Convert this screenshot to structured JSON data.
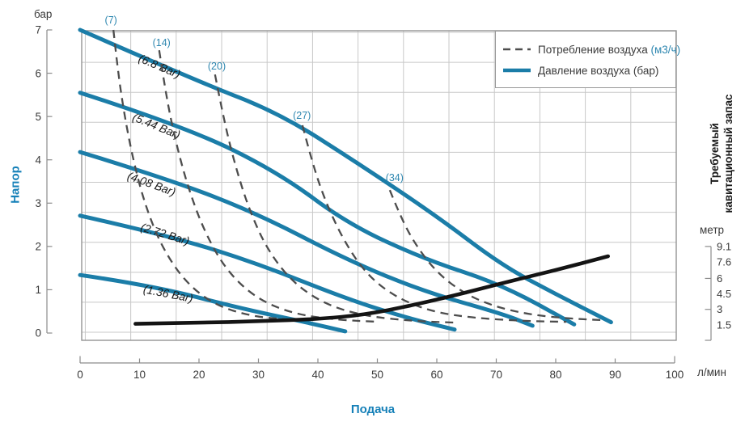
{
  "chart_data": {
    "type": "line",
    "title": "",
    "x_axis": {
      "label": "Подача",
      "unit": "л/мин",
      "range": [
        0,
        100
      ],
      "ticks": [
        0,
        10,
        20,
        30,
        40,
        50,
        60,
        70,
        80,
        90,
        100
      ]
    },
    "y_axis_left": {
      "label": "Напор",
      "unit": "бар",
      "range": [
        0,
        7
      ],
      "ticks": [
        0,
        1,
        2,
        3,
        4,
        5,
        6,
        7
      ]
    },
    "y_axis_right": {
      "label_line1": "Требуемый",
      "label_line2": "кавитационный запас",
      "unit": "метр",
      "range": [
        0,
        9.1
      ],
      "ticks": [
        9.1,
        7.6,
        6,
        4.5,
        3,
        1.5
      ],
      "tick_marks": [
        9.1,
        6,
        3,
        0
      ]
    },
    "legend": {
      "items": [
        {
          "name": "air-consumption",
          "label": "Потребление воздуха",
          "unit_suffix": "(м3/ч)",
          "style": "dashed"
        },
        {
          "name": "air-pressure",
          "label": "Давление воздуха (бар)",
          "unit_suffix": "",
          "style": "solid"
        }
      ]
    },
    "grid": {
      "x_step_lmin": 7.646,
      "y_step_bar": 0.6926
    },
    "series": [
      {
        "name": "air-pressure-6.8-bar",
        "group": "air-pressure",
        "style": "solid",
        "axis": "left",
        "label": "(6.8 Bar)",
        "label_at": [
          13.1,
          6.08
        ],
        "label_rotation": 23,
        "points": [
          [
            0,
            7.0
          ],
          [
            20,
            5.8
          ],
          [
            33.5,
            5.08
          ],
          [
            47,
            3.9
          ],
          [
            60,
            2.7
          ],
          [
            70.9,
            1.57
          ],
          [
            80,
            0.9
          ],
          [
            89.3,
            0.25
          ]
        ]
      },
      {
        "name": "air-pressure-5.44-bar",
        "group": "air-pressure",
        "style": "solid",
        "axis": "left",
        "label": "(5.44 Bar)",
        "label_at": [
          12.6,
          4.7
        ],
        "label_rotation": 22,
        "points": [
          [
            0,
            5.55
          ],
          [
            18,
            4.75
          ],
          [
            33.5,
            3.7
          ],
          [
            45,
            2.52
          ],
          [
            58,
            1.7
          ],
          [
            70.9,
            1.12
          ],
          [
            83.1,
            0.2
          ]
        ]
      },
      {
        "name": "air-pressure-4.08-bar",
        "group": "air-pressure",
        "style": "solid",
        "axis": "left",
        "label": "(4.08 Bar)",
        "label_at": [
          11.8,
          3.36
        ],
        "label_rotation": 20,
        "points": [
          [
            0,
            4.18
          ],
          [
            15,
            3.55
          ],
          [
            30,
            2.75
          ],
          [
            45,
            1.68
          ],
          [
            58,
            0.95
          ],
          [
            70.9,
            0.45
          ],
          [
            76.1,
            0.17
          ]
        ]
      },
      {
        "name": "air-pressure-2.72-bar",
        "group": "air-pressure",
        "style": "solid",
        "axis": "left",
        "label": "(2.72 Bar)",
        "label_at": [
          14.1,
          2.2
        ],
        "label_rotation": 17,
        "points": [
          [
            0,
            2.71
          ],
          [
            15,
            2.25
          ],
          [
            30,
            1.6
          ],
          [
            45,
            0.78
          ],
          [
            55,
            0.35
          ],
          [
            63,
            0.08
          ]
        ]
      },
      {
        "name": "air-pressure-1.36-bar",
        "group": "air-pressure",
        "style": "solid",
        "axis": "left",
        "label": "(1.36 Bar)",
        "label_at": [
          14.7,
          0.82
        ],
        "label_rotation": 11,
        "points": [
          [
            0,
            1.34
          ],
          [
            12,
            1.1
          ],
          [
            27.3,
            0.56
          ],
          [
            38,
            0.25
          ],
          [
            44.6,
            0.04
          ]
        ]
      },
      {
        "name": "air-consumption-7",
        "group": "air-consumption",
        "style": "dashed",
        "axis": "left",
        "label": "(7)",
        "label_at": [
          5.2,
          7.15
        ],
        "label_rotation": 0,
        "points": [
          [
            5.6,
            7.0
          ],
          [
            6.4,
            6.0
          ],
          [
            7.5,
            5.0
          ],
          [
            9.0,
            3.96
          ],
          [
            11.0,
            2.93
          ],
          [
            13.7,
            2.0
          ],
          [
            17.6,
            1.19
          ],
          [
            22.6,
            0.65
          ],
          [
            28.7,
            0.39
          ],
          [
            34.4,
            0.32
          ]
        ]
      },
      {
        "name": "air-consumption-14",
        "group": "air-consumption",
        "style": "dashed",
        "axis": "left",
        "label": "(14)",
        "label_at": [
          13.7,
          6.63
        ],
        "label_rotation": 0,
        "points": [
          [
            13.3,
            6.53
          ],
          [
            14.4,
            5.54
          ],
          [
            15.9,
            4.52
          ],
          [
            18.0,
            3.43
          ],
          [
            20.8,
            2.37
          ],
          [
            24.6,
            1.44
          ],
          [
            29.8,
            0.78
          ],
          [
            36.2,
            0.43
          ],
          [
            43.7,
            0.3
          ],
          [
            50.2,
            0.26
          ]
        ]
      },
      {
        "name": "air-consumption-20",
        "group": "air-consumption",
        "style": "dashed",
        "axis": "left",
        "label": "(20)",
        "label_at": [
          23.0,
          6.09
        ],
        "label_rotation": 0,
        "points": [
          [
            22.7,
            5.97
          ],
          [
            24.1,
            4.98
          ],
          [
            25.9,
            3.96
          ],
          [
            28.2,
            2.93
          ],
          [
            31.4,
            1.94
          ],
          [
            35.8,
            1.16
          ],
          [
            41.4,
            0.65
          ],
          [
            48.0,
            0.39
          ],
          [
            55.9,
            0.28
          ],
          [
            63.0,
            0.24
          ]
        ]
      },
      {
        "name": "air-consumption-27",
        "group": "air-consumption",
        "style": "dashed",
        "axis": "left",
        "label": "(27)",
        "label_at": [
          37.3,
          4.95
        ],
        "label_rotation": 0,
        "points": [
          [
            37.4,
            4.8
          ],
          [
            39.0,
            3.96
          ],
          [
            41.2,
            3.06
          ],
          [
            44.2,
            2.17
          ],
          [
            48.0,
            1.38
          ],
          [
            52.9,
            0.84
          ],
          [
            58.9,
            0.5
          ],
          [
            66.1,
            0.35
          ],
          [
            74.3,
            0.28
          ],
          [
            81.8,
            0.26
          ]
        ]
      },
      {
        "name": "air-consumption-34",
        "group": "air-consumption",
        "style": "dashed",
        "axis": "left",
        "label": "(34)",
        "label_at": [
          52.9,
          3.51
        ],
        "label_rotation": 0,
        "points": [
          [
            52.1,
            3.3
          ],
          [
            54.0,
            2.65
          ],
          [
            56.6,
            2.0
          ],
          [
            60.0,
            1.4
          ],
          [
            64.4,
            0.93
          ],
          [
            69.5,
            0.62
          ],
          [
            75.5,
            0.43
          ],
          [
            81.8,
            0.34
          ],
          [
            87.5,
            0.3
          ]
        ]
      },
      {
        "name": "npsh-curve",
        "group": "npsh",
        "style": "solid-black",
        "axis": "right",
        "label": "",
        "label_at": null,
        "label_rotation": 0,
        "points": [
          [
            9.3,
            1.6
          ],
          [
            20,
            1.7
          ],
          [
            30,
            1.85
          ],
          [
            40,
            2.05
          ],
          [
            48,
            2.5
          ],
          [
            55.5,
            3.35
          ],
          [
            63,
            4.35
          ],
          [
            71,
            5.55
          ],
          [
            80,
            6.8
          ],
          [
            88.8,
            8.15
          ]
        ]
      }
    ],
    "colors": {
      "curve_blue": "#1B7DA8",
      "label_teal": "#2E87B0",
      "axis_title_blue": "#1580B8",
      "dashed_gray": "#4D4D4D",
      "npsh_black": "#141414",
      "grid": "#C8C8C8",
      "plot_border": "#8C8C8C",
      "tick_text": "#3A3A3A",
      "curve_label_text": "#1a1a1a"
    }
  }
}
